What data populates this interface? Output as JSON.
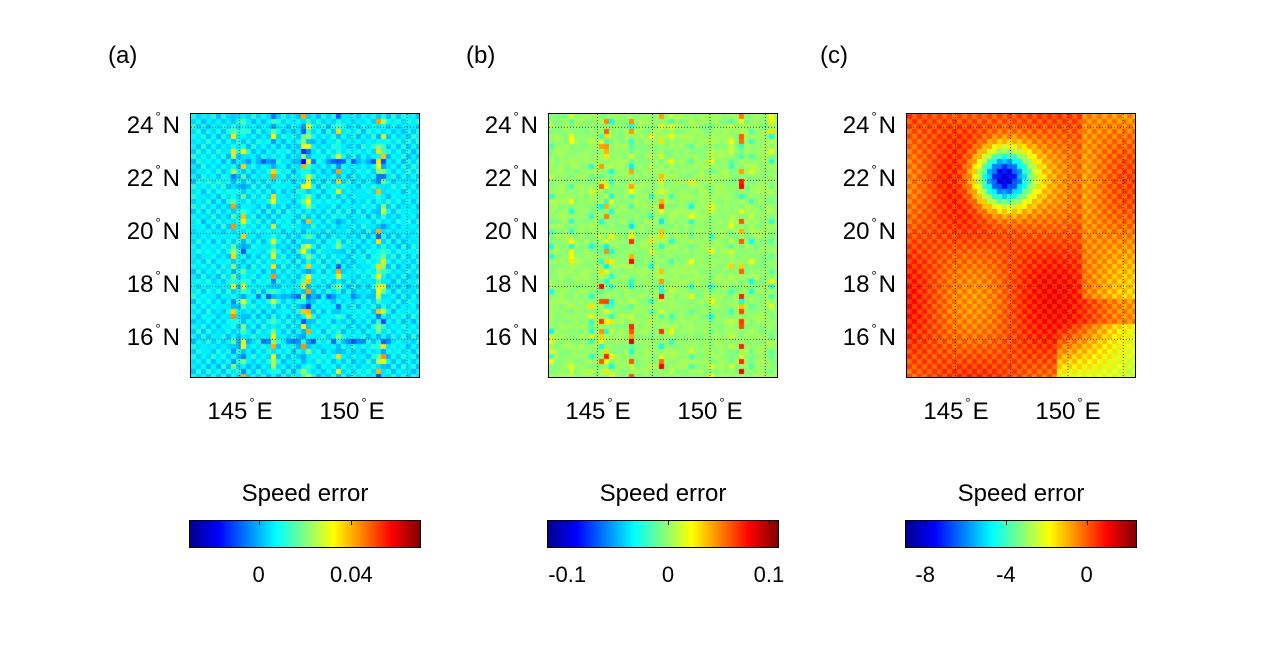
{
  "chart_data": [
    {
      "type": "heatmap",
      "panel_label": "(a)",
      "ylabel_ticks": [
        "24",
        "22",
        "20",
        "18",
        "16"
      ],
      "xlabel_ticks": [
        "145",
        "150"
      ],
      "lat_suffix": "N",
      "lon_suffix": "E",
      "lat_values": [
        24,
        22,
        20,
        18,
        16
      ],
      "lon_values": [
        145,
        150
      ],
      "lat_range": [
        15,
        25
      ],
      "lon_range": [
        142,
        152
      ],
      "grid": true,
      "colorbar": {
        "title": "Speed error",
        "range": [
          -0.03,
          0.07
        ],
        "ticks": [
          0,
          0.04
        ],
        "tick_labels": [
          "0",
          "0.04"
        ]
      },
      "base_value": 0.005,
      "pattern": "checkerboard with sparse vertical streaks",
      "colormap": "jet"
    },
    {
      "type": "heatmap",
      "panel_label": "(b)",
      "ylabel_ticks": [
        "24",
        "22",
        "20",
        "18",
        "16"
      ],
      "xlabel_ticks": [
        "145",
        "150"
      ],
      "lat_suffix": "N",
      "lon_suffix": "E",
      "lat_values": [
        24,
        22,
        20,
        18,
        16
      ],
      "lon_values": [
        145,
        150
      ],
      "lat_range": [
        15,
        25
      ],
      "lon_range": [
        142,
        152
      ],
      "grid": true,
      "colorbar": {
        "title": "Speed error",
        "range": [
          -0.12,
          0.11
        ],
        "ticks": [
          -0.1,
          0,
          0.1
        ],
        "tick_labels": [
          "-0.1",
          "0",
          "0.1"
        ]
      },
      "base_value": 0.0,
      "pattern": "near-uniform with sparse vertical streaks",
      "colormap": "jet"
    },
    {
      "type": "heatmap",
      "panel_label": "(c)",
      "ylabel_ticks": [
        "24",
        "22",
        "20",
        "18",
        "16"
      ],
      "xlabel_ticks": [
        "145",
        "150"
      ],
      "lat_suffix": "N",
      "lon_suffix": "E",
      "lat_values": [
        24,
        22,
        20,
        18,
        16
      ],
      "lon_values": [
        145,
        150
      ],
      "lat_range": [
        15,
        25
      ],
      "lon_range": [
        142,
        152
      ],
      "grid": true,
      "colorbar": {
        "title": "Speed error",
        "range": [
          -9,
          2.5
        ],
        "ticks": [
          -8,
          -4,
          0
        ],
        "tick_labels": [
          "-8",
          "-4",
          "0"
        ]
      },
      "base_value": 0.3,
      "minimum": {
        "lon": 146.2,
        "lat": 22.6,
        "value": -8.5
      },
      "pattern": "smooth field with deep minimum near 146.2E 22.6N",
      "colormap": "jet"
    }
  ]
}
